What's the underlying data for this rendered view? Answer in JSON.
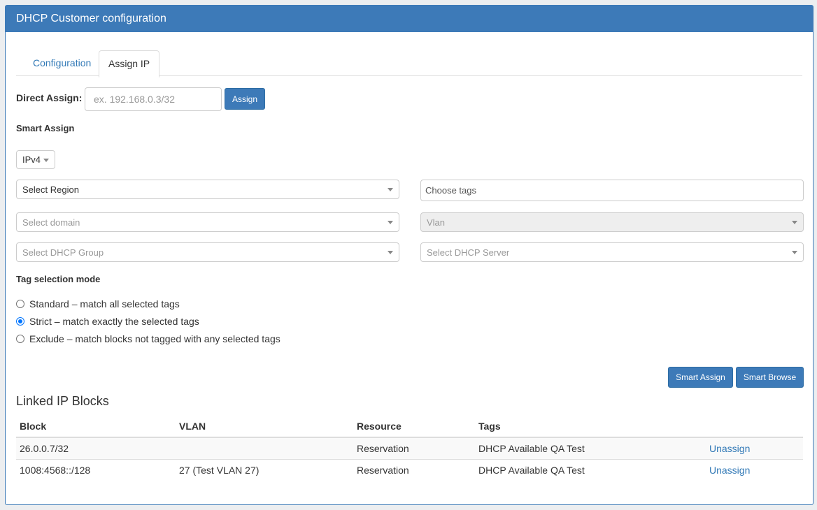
{
  "title": "DHCP Customer configuration",
  "tabs": [
    {
      "label": "Configuration",
      "active": false
    },
    {
      "label": "Assign IP",
      "active": true
    }
  ],
  "direct_assign": {
    "label": "Direct Assign:",
    "placeholder": "ex. 192.168.0.3/32",
    "button": "Assign"
  },
  "smart_assign": {
    "heading": "Smart Assign",
    "ip_version": "IPv4",
    "region": "Select Region",
    "tags": "Choose tags",
    "domain": "Select domain",
    "vlan": "Vlan",
    "dhcp_group": "Select DHCP Group",
    "dhcp_server": "Select DHCP Server"
  },
  "tag_mode": {
    "heading": "Tag selection mode",
    "options": [
      {
        "label": "Standard – match all selected tags",
        "selected": false
      },
      {
        "label": "Strict – match exactly the selected tags",
        "selected": true
      },
      {
        "label": "Exclude – match blocks not tagged with any selected tags",
        "selected": false
      }
    ]
  },
  "buttons": {
    "smart_assign": "Smart Assign",
    "smart_browse": "Smart Browse"
  },
  "linked": {
    "heading": "Linked IP Blocks",
    "columns": [
      "Block",
      "VLAN",
      "Resource",
      "Tags"
    ],
    "rows": [
      {
        "block": "26.0.0.7/32",
        "vlan": "",
        "resource": "Reservation",
        "tags": "DHCP Available QA Test",
        "action": "Unassign"
      },
      {
        "block": "1008:4568::/128",
        "vlan": "27 (Test VLAN 27)",
        "resource": "Reservation",
        "tags": "DHCP Available QA Test",
        "action": "Unassign"
      }
    ]
  },
  "colors": {
    "primary": "#3d7ab8",
    "link": "#337ab7"
  }
}
